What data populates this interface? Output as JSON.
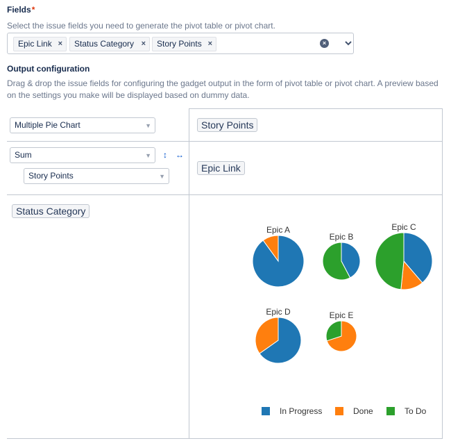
{
  "fields": {
    "label": "Fields",
    "required_mark": "*",
    "help": "Select the issue fields you need to generate the pivot table or pivot chart.",
    "tags": [
      "Epic Link",
      "Status Category",
      "Story Points"
    ],
    "remove_glyph": "×",
    "clear_glyph": "×"
  },
  "output": {
    "label": "Output configuration",
    "help": "Drag & drop the issue fields for configuring the gadget output in the form of pivot table or pivot chart. A preview based on the settings you make will be displayed based on dummy data."
  },
  "config": {
    "chart_type": "Multiple Pie Chart",
    "aggregate": "Sum",
    "measure": "Story Points",
    "measure_header": "Story Points",
    "column_field": "Epic Link",
    "row_field": "Status Category",
    "sort_glyph": "↕",
    "swap_glyph": "↔"
  },
  "colors": {
    "In Progress": "#1f77b4",
    "Done": "#ff7f0e",
    "To Do": "#2ca02c"
  },
  "chart_data": {
    "type": "pie",
    "series_order": [
      "In Progress",
      "Done",
      "To Do"
    ],
    "legend": [
      "In Progress",
      "Done",
      "To Do"
    ],
    "legend_position": "bottom",
    "pies": [
      {
        "name": "Epic A",
        "values": {
          "In Progress": 9,
          "Done": 1,
          "To Do": 0
        }
      },
      {
        "name": "Epic B",
        "values": {
          "In Progress": 5.5,
          "Done": 0,
          "To Do": 7.5
        }
      },
      {
        "name": "Epic C",
        "values": {
          "In Progress": 12,
          "Done": 4,
          "To Do": 15
        }
      },
      {
        "name": "Epic D",
        "values": {
          "In Progress": 7.5,
          "Done": 4,
          "To Do": 0
        }
      },
      {
        "name": "Epic E",
        "values": {
          "In Progress": 0,
          "Done": 7,
          "To Do": 3
        }
      }
    ]
  }
}
